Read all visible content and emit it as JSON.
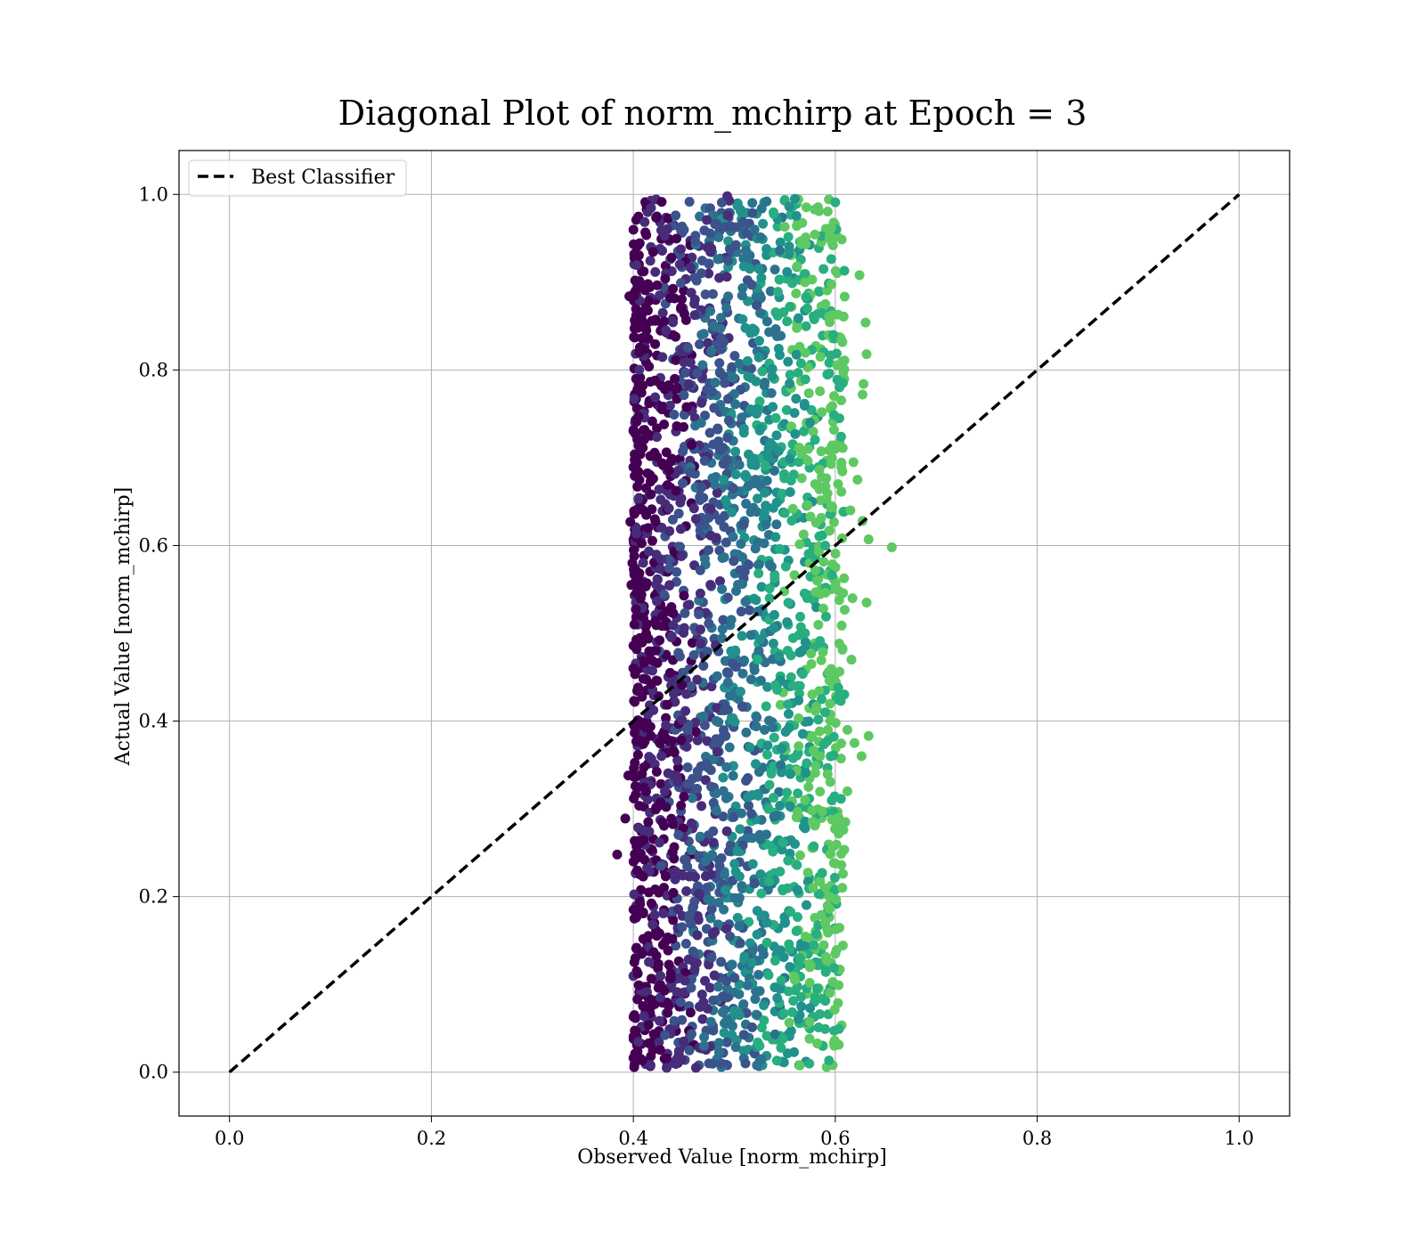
{
  "chart_data": {
    "type": "scatter",
    "title": "Diagonal Plot of norm_mchirp at Epoch = 3",
    "xlabel": "Observed Value [norm_mchirp]",
    "ylabel": "Actual Value [norm_mchirp]",
    "xlim": [
      -0.05,
      1.05
    ],
    "ylim": [
      -0.05,
      1.05
    ],
    "xticks": [
      0.0,
      0.2,
      0.4,
      0.6,
      0.8,
      1.0
    ],
    "yticks": [
      0.0,
      0.2,
      0.4,
      0.6,
      0.8,
      1.0
    ],
    "xtick_labels": [
      "0.0",
      "0.2",
      "0.4",
      "0.6",
      "0.8",
      "1.0"
    ],
    "ytick_labels": [
      "0.0",
      "0.2",
      "0.4",
      "0.6",
      "0.8",
      "1.0"
    ],
    "grid": true,
    "legend": {
      "position": "upper-left",
      "entries": [
        {
          "label": "Best Classifier",
          "style": "dashed",
          "color": "#000000"
        }
      ]
    },
    "reference_line": {
      "label": "Best Classifier",
      "x": [
        0.0,
        1.0
      ],
      "y": [
        0.0,
        1.0
      ],
      "style": "dashed",
      "color": "#000000"
    },
    "scatter": {
      "colormap": "viridis",
      "point_color_palette": [
        "#440154",
        "#472c7a",
        "#3b528b",
        "#2c728e",
        "#21918c",
        "#28ae80",
        "#5ec962",
        "#addc30"
      ],
      "bulk_region": {
        "x_range": [
          0.4,
          0.61
        ],
        "y_range": [
          0.005,
          0.995
        ]
      },
      "points": [
        [
          0.384,
          0.248
        ],
        [
          0.392,
          0.289
        ],
        [
          0.395,
          0.338
        ],
        [
          0.398,
          0.555
        ],
        [
          0.397,
          0.627
        ],
        [
          0.396,
          0.884
        ],
        [
          0.401,
          0.767
        ],
        [
          0.4,
          0.46
        ],
        [
          0.401,
          0.51
        ],
        [
          0.399,
          0.58
        ],
        [
          0.402,
          0.326
        ],
        [
          0.401,
          0.175
        ],
        [
          0.402,
          0.13
        ],
        [
          0.401,
          0.065
        ],
        [
          0.404,
          0.083
        ],
        [
          0.403,
          0.858
        ],
        [
          0.405,
          0.747
        ],
        [
          0.404,
          0.667
        ],
        [
          0.406,
          0.395
        ],
        [
          0.407,
          0.225
        ],
        [
          0.417,
          0.008
        ],
        [
          0.433,
          0.005
        ],
        [
          0.462,
          0.005
        ],
        [
          0.487,
          0.01
        ],
        [
          0.511,
          0.01
        ],
        [
          0.527,
          0.015
        ],
        [
          0.525,
          0.03
        ],
        [
          0.548,
          0.038
        ],
        [
          0.656,
          0.598
        ],
        [
          0.633,
          0.607
        ],
        [
          0.627,
          0.628
        ],
        [
          0.631,
          0.535
        ],
        [
          0.633,
          0.383
        ],
        [
          0.626,
          0.36
        ],
        [
          0.631,
          0.818
        ],
        [
          0.63,
          0.854
        ],
        [
          0.628,
          0.784
        ],
        [
          0.627,
          0.772
        ],
        [
          0.609,
          0.913
        ],
        [
          0.624,
          0.908
        ],
        [
          0.6,
          0.991
        ],
        [
          0.596,
          0.962
        ],
        [
          0.597,
          0.944
        ],
        [
          0.56,
          0.995
        ],
        [
          0.532,
          0.992
        ],
        [
          0.493,
          0.998
        ],
        [
          0.618,
          0.695
        ],
        [
          0.622,
          0.675
        ],
        [
          0.615,
          0.64
        ],
        [
          0.617,
          0.54
        ],
        [
          0.616,
          0.47
        ],
        [
          0.619,
          0.375
        ],
        [
          0.612,
          0.39
        ],
        [
          0.612,
          0.32
        ],
        [
          0.61,
          0.285
        ],
        [
          0.608,
          0.276
        ],
        [
          0.606,
          0.236
        ],
        [
          0.607,
          0.21
        ],
        [
          0.601,
          0.163
        ],
        [
          0.6,
          0.135
        ],
        [
          0.58,
          0.085
        ],
        [
          0.575,
          0.073
        ],
        [
          0.565,
          0.13
        ],
        [
          0.555,
          0.12
        ],
        [
          0.56,
          0.105
        ],
        [
          0.545,
          0.095
        ],
        [
          0.52,
          0.215
        ],
        [
          0.548,
          0.207
        ],
        [
          0.545,
          0.596
        ],
        [
          0.55,
          0.637
        ],
        [
          0.535,
          0.54
        ],
        [
          0.52,
          0.458
        ],
        [
          0.523,
          0.47
        ],
        [
          0.546,
          0.35
        ],
        [
          0.538,
          0.758
        ],
        [
          0.545,
          0.817
        ],
        [
          0.555,
          0.872
        ],
        [
          0.545,
          0.936
        ],
        [
          0.52,
          0.96
        ],
        [
          0.57,
          0.9
        ],
        [
          0.598,
          0.84
        ],
        [
          0.604,
          0.745
        ],
        [
          0.6,
          0.71
        ],
        [
          0.58,
          0.67
        ],
        [
          0.575,
          0.74
        ],
        [
          0.59,
          0.6
        ],
        [
          0.582,
          0.56
        ],
        [
          0.57,
          0.5
        ],
        [
          0.565,
          0.44
        ],
        [
          0.59,
          0.41
        ],
        [
          0.585,
          0.36
        ],
        [
          0.57,
          0.31
        ],
        [
          0.56,
          0.26
        ],
        [
          0.578,
          0.21
        ],
        [
          0.55,
          0.17
        ],
        [
          0.555,
          0.14
        ],
        [
          0.5,
          0.07
        ],
        [
          0.505,
          0.065
        ],
        [
          0.49,
          0.045
        ],
        [
          0.47,
          0.03
        ]
      ]
    }
  }
}
